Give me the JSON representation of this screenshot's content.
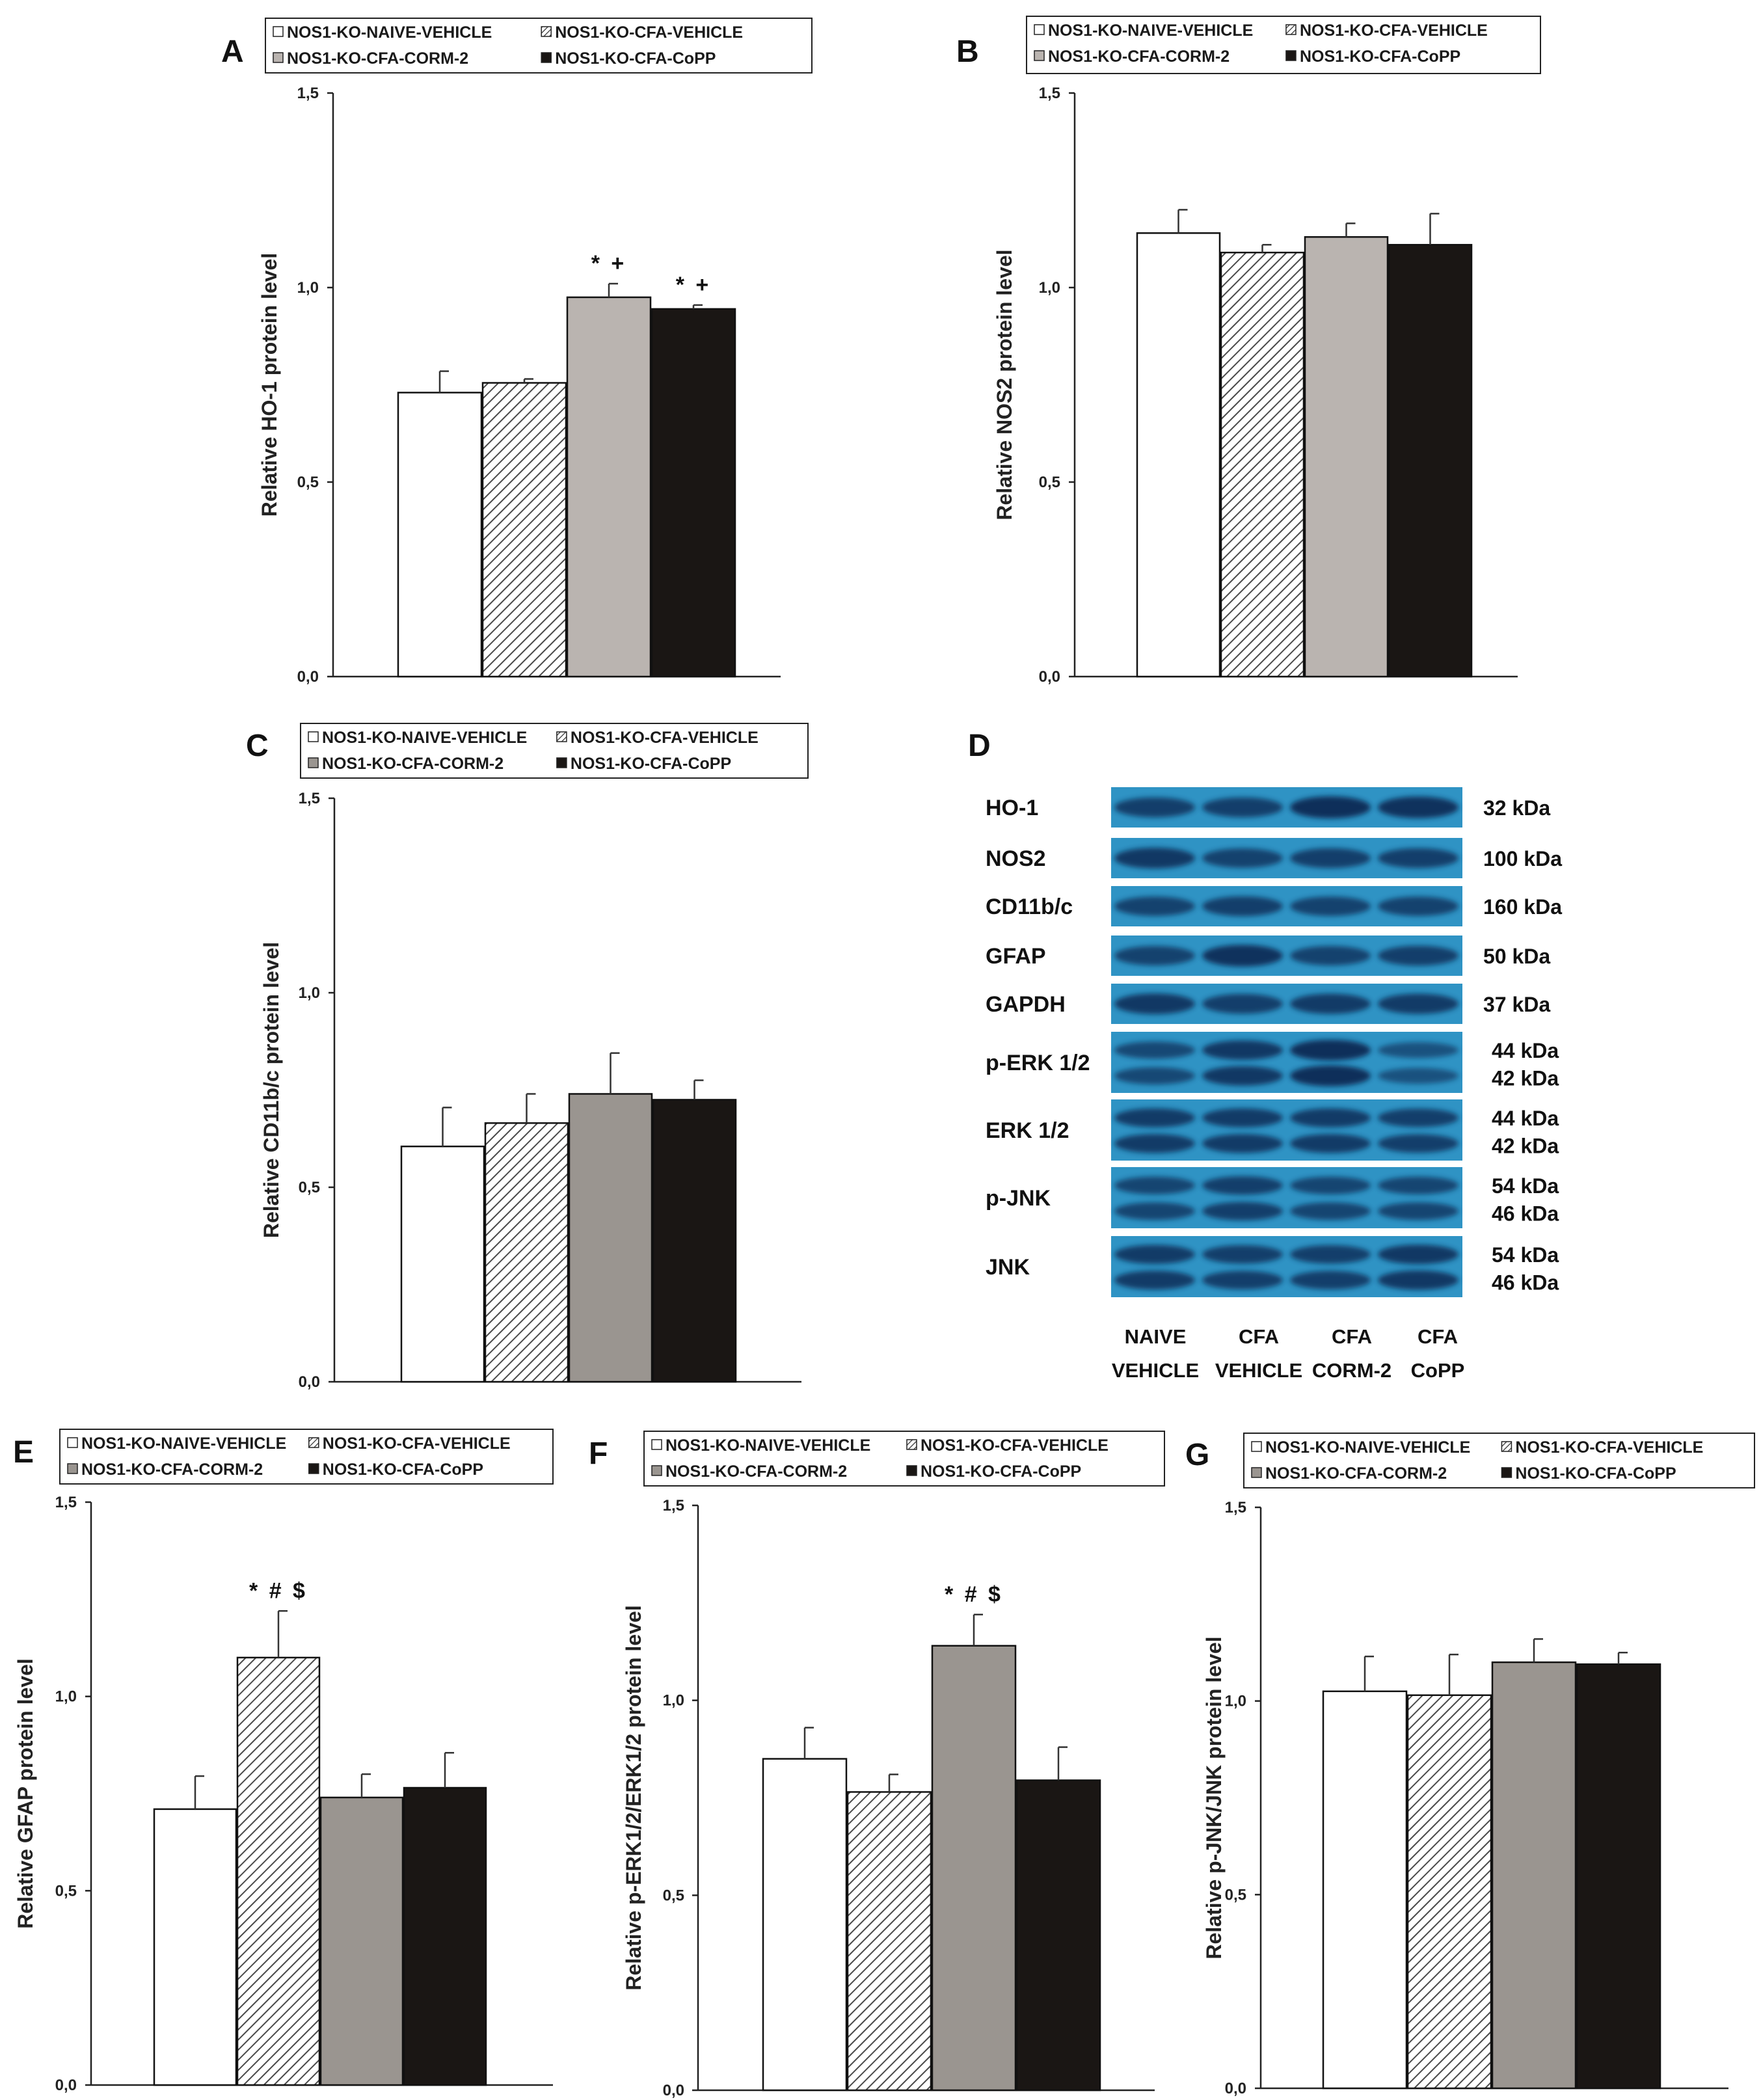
{
  "legend": {
    "naive_vehicle": "NOS1-KO-NAIVE-VEHICLE",
    "cfa_vehicle": "NOS1-KO-CFA-VEHICLE",
    "cfa_corm2": "NOS1-KO-CFA-CORM-2",
    "cfa_copp": "NOS1-KO-CFA-CoPP"
  },
  "colors": {
    "naive": "#ffffff",
    "cfa_vehicle_stripe": "#4a4a4a",
    "corm2_light": "#bab4b0",
    "corm2_dark": "#9a9590",
    "copp": "#1a1614",
    "blot_bg": "#2f93c4",
    "band": "#0b2a55"
  },
  "chart_data": [
    {
      "panel": "A",
      "type": "bar",
      "ylabel": "Relative HO-1 protein level",
      "ylim": [
        0,
        1.5
      ],
      "yticks": [
        "0,0",
        "0,5",
        "1,0",
        "1,5"
      ],
      "categories": [
        "NOS1-KO-NAIVE-VEHICLE",
        "NOS1-KO-CFA-VEHICLE",
        "NOS1-KO-CFA-CORM-2",
        "NOS1-KO-CFA-CoPP"
      ],
      "values": [
        0.73,
        0.755,
        0.975,
        0.945
      ],
      "errors": [
        0.055,
        0.01,
        0.035,
        0.01
      ],
      "annotations": [
        "",
        "",
        "* +",
        "* +"
      ]
    },
    {
      "panel": "B",
      "type": "bar",
      "ylabel": "Relative NOS2 protein level",
      "ylim": [
        0,
        1.5
      ],
      "yticks": [
        "0,0",
        "0,5",
        "1,0",
        "1,5"
      ],
      "categories": [
        "NOS1-KO-NAIVE-VEHICLE",
        "NOS1-KO-CFA-VEHICLE",
        "NOS1-KO-CFA-CORM-2",
        "NOS1-KO-CFA-CoPP"
      ],
      "values": [
        1.14,
        1.09,
        1.13,
        1.11
      ],
      "errors": [
        0.06,
        0.02,
        0.035,
        0.08
      ],
      "annotations": [
        "",
        "",
        "",
        ""
      ]
    },
    {
      "panel": "C",
      "type": "bar",
      "ylabel": "Relative CD11b/c protein level",
      "ylim": [
        0,
        1.5
      ],
      "yticks": [
        "0,0",
        "0,5",
        "1,0",
        "1,5"
      ],
      "categories": [
        "NOS1-KO-NAIVE-VEHICLE",
        "NOS1-KO-CFA-VEHICLE",
        "NOS1-KO-CFA-CORM-2",
        "NOS1-KO-CFA-CoPP"
      ],
      "values": [
        0.605,
        0.665,
        0.74,
        0.725
      ],
      "errors": [
        0.1,
        0.075,
        0.105,
        0.05
      ],
      "annotations": [
        "",
        "",
        "",
        ""
      ]
    },
    {
      "panel": "E",
      "type": "bar",
      "ylabel": "Relative GFAP protein level",
      "ylim": [
        0,
        1.5
      ],
      "yticks": [
        "0,0",
        "0,5",
        "1,0",
        "1,5"
      ],
      "categories": [
        "NOS1-KO-NAIVE-VEHICLE",
        "NOS1-KO-CFA-VEHICLE",
        "NOS1-KO-CFA-CORM-2",
        "NOS1-KO-CFA-CoPP"
      ],
      "values": [
        0.71,
        1.1,
        0.74,
        0.765
      ],
      "errors": [
        0.085,
        0.12,
        0.06,
        0.09
      ],
      "annotations": [
        "",
        "* # $",
        "",
        ""
      ]
    },
    {
      "panel": "F",
      "type": "bar",
      "ylabel": "Relative p-ERK1/2/ERK1/2 protein level",
      "ylim": [
        0,
        1.5
      ],
      "yticks": [
        "0,0",
        "0,5",
        "1,0",
        "1,5"
      ],
      "categories": [
        "NOS1-KO-NAIVE-VEHICLE",
        "NOS1-KO-CFA-VEHICLE",
        "NOS1-KO-CFA-CORM-2",
        "NOS1-KO-CFA-CoPP"
      ],
      "values": [
        0.85,
        0.765,
        1.14,
        0.795
      ],
      "errors": [
        0.08,
        0.045,
        0.08,
        0.085
      ],
      "annotations": [
        "",
        "",
        "* # $",
        ""
      ]
    },
    {
      "panel": "G",
      "type": "bar",
      "ylabel": "Relative p-JNK/JNK protein level",
      "ylim": [
        0,
        1.5
      ],
      "yticks": [
        "0,0",
        "0,5",
        "1,0",
        "1,5"
      ],
      "categories": [
        "NOS1-KO-NAIVE-VEHICLE",
        "NOS1-KO-CFA-VEHICLE",
        "NOS1-KO-CFA-CORM-2",
        "NOS1-KO-CFA-CoPP"
      ],
      "values": [
        1.025,
        1.015,
        1.1,
        1.095
      ],
      "errors": [
        0.09,
        0.105,
        0.06,
        0.03
      ],
      "annotations": [
        "",
        "",
        "",
        ""
      ]
    }
  ],
  "blot": {
    "panel": "D",
    "rows": [
      {
        "label": "HO-1",
        "kda": [
          "32 kDa"
        ],
        "bands": 1,
        "strength": [
          0.75,
          0.75,
          1.0,
          0.95
        ]
      },
      {
        "label": "NOS2",
        "kda": [
          "100 kDa"
        ],
        "bands": 1,
        "strength": [
          0.85,
          0.7,
          0.75,
          0.75
        ]
      },
      {
        "label": "CD11b/c",
        "kda": [
          "160 kDa"
        ],
        "bands": 1,
        "strength": [
          0.7,
          0.75,
          0.7,
          0.7
        ]
      },
      {
        "label": "GFAP",
        "kda": [
          "50 kDa"
        ],
        "bands": 1,
        "strength": [
          0.7,
          0.95,
          0.7,
          0.75
        ]
      },
      {
        "label": "GAPDH",
        "kda": [
          "37 kDa"
        ],
        "bands": 1,
        "strength": [
          0.85,
          0.75,
          0.8,
          0.8
        ]
      },
      {
        "label": "p-ERK 1/2",
        "kda": [
          "44 kDa",
          "42 kDa"
        ],
        "bands": 2,
        "strength": [
          0.6,
          0.85,
          1.0,
          0.45
        ]
      },
      {
        "label": "ERK 1/2",
        "kda": [
          "44 kDa",
          "42 kDa"
        ],
        "bands": 2,
        "strength": [
          0.8,
          0.8,
          0.8,
          0.75
        ]
      },
      {
        "label": "p-JNK",
        "kda": [
          "54 kDa",
          "46 kDa"
        ],
        "bands": 2,
        "strength": [
          0.65,
          0.75,
          0.65,
          0.65
        ]
      },
      {
        "label": "JNK",
        "kda": [
          "54 kDa",
          "46 kDa"
        ],
        "bands": 2,
        "strength": [
          0.8,
          0.75,
          0.75,
          0.85
        ]
      }
    ],
    "lanes_top": [
      "NAIVE",
      "CFA",
      "CFA",
      "CFA"
    ],
    "lanes_bottom": [
      "VEHICLE",
      "VEHICLE",
      "CORM-2",
      "CoPP"
    ]
  }
}
